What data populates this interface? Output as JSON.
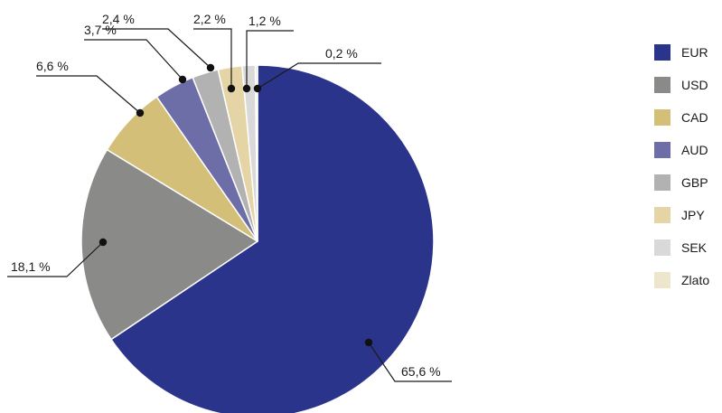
{
  "chart_data": {
    "type": "pie",
    "title": "",
    "categories": [
      "EUR",
      "USD",
      "CAD",
      "AUD",
      "GBP",
      "JPY",
      "SEK",
      "Zlato"
    ],
    "values": [
      65.6,
      18.1,
      6.6,
      3.7,
      2.4,
      2.2,
      1.2,
      0.2
    ],
    "value_labels": [
      "65,6 %",
      "18,1 %",
      "6,6 %",
      "3,7 %",
      "2,4 %",
      "2,2 %",
      "1,2 %",
      "0,2 %"
    ],
    "colors": [
      "#2b348b",
      "#8a8a88",
      "#d4bf79",
      "#6d6da8",
      "#b2b2b2",
      "#e5d5a6",
      "#d9d9d9",
      "#ede6cd"
    ],
    "legend": {
      "position": "right"
    }
  }
}
